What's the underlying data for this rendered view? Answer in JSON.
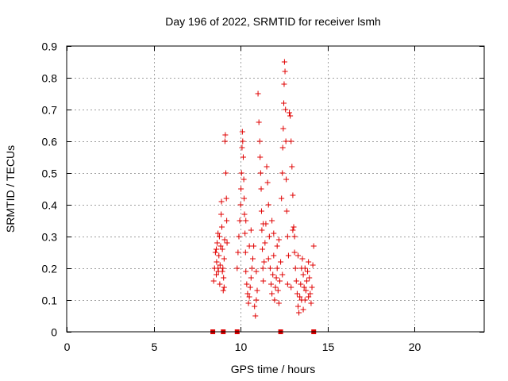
{
  "chart_data": {
    "type": "scatter",
    "title": "Day 196 of 2022, SRMTID for receiver lsmh",
    "xlabel": "GPS time / hours",
    "ylabel": "SRMTID / TECUs",
    "xlim": [
      0,
      24
    ],
    "ylim": [
      0,
      0.9
    ],
    "grid": true,
    "x_ticks": [
      0,
      5,
      10,
      15,
      20
    ],
    "x_tick_labels": [
      "0",
      "5",
      "10",
      "15",
      "20"
    ],
    "y_ticks": [
      0,
      0.1,
      0.2,
      0.3,
      0.4,
      0.5,
      0.6,
      0.7,
      0.8,
      0.9
    ],
    "y_tick_labels": [
      "0",
      "0.1",
      "0.2",
      "0.3",
      "0.4",
      "0.5",
      "0.6",
      "0.7",
      "0.8",
      "0.9"
    ],
    "marker": "+",
    "color": "#e00000",
    "zero_markers_x": [
      8.4,
      9.0,
      9.8,
      12.3,
      14.2
    ],
    "series": [
      {
        "name": "SRMTID",
        "points": [
          [
            8.45,
            0.16
          ],
          [
            8.5,
            0.2
          ],
          [
            8.55,
            0.25
          ],
          [
            8.6,
            0.18
          ],
          [
            8.62,
            0.22
          ],
          [
            8.65,
            0.28
          ],
          [
            8.7,
            0.31
          ],
          [
            8.72,
            0.19
          ],
          [
            8.75,
            0.24
          ],
          [
            8.8,
            0.15
          ],
          [
            8.82,
            0.21
          ],
          [
            8.85,
            0.27
          ],
          [
            8.88,
            0.37
          ],
          [
            8.9,
            0.41
          ],
          [
            8.92,
            0.33
          ],
          [
            8.95,
            0.26
          ],
          [
            8.98,
            0.2
          ],
          [
            9.0,
            0.13
          ],
          [
            9.02,
            0.17
          ],
          [
            9.05,
            0.23
          ],
          [
            9.08,
            0.29
          ],
          [
            9.1,
            0.6
          ],
          [
            9.12,
            0.62
          ],
          [
            9.15,
            0.5
          ],
          [
            9.18,
            0.42
          ],
          [
            9.2,
            0.35
          ],
          [
            9.22,
            0.28
          ],
          [
            8.6,
            0.26
          ],
          [
            8.7,
            0.2
          ],
          [
            8.78,
            0.3
          ],
          [
            9.05,
            0.14
          ],
          [
            8.95,
            0.19
          ],
          [
            9.8,
            0.2
          ],
          [
            9.85,
            0.25
          ],
          [
            9.9,
            0.3
          ],
          [
            9.95,
            0.35
          ],
          [
            10.0,
            0.4
          ],
          [
            10.02,
            0.45
          ],
          [
            10.05,
            0.5
          ],
          [
            10.08,
            0.58
          ],
          [
            10.1,
            0.63
          ],
          [
            10.12,
            0.6
          ],
          [
            10.15,
            0.55
          ],
          [
            10.18,
            0.48
          ],
          [
            10.2,
            0.42
          ],
          [
            10.22,
            0.37
          ],
          [
            10.25,
            0.31
          ],
          [
            10.28,
            0.25
          ],
          [
            10.3,
            0.19
          ],
          [
            10.35,
            0.15
          ],
          [
            10.4,
            0.12
          ],
          [
            10.45,
            0.09
          ],
          [
            10.5,
            0.11
          ],
          [
            10.55,
            0.14
          ],
          [
            10.6,
            0.17
          ],
          [
            10.65,
            0.2
          ],
          [
            10.7,
            0.23
          ],
          [
            10.75,
            0.27
          ],
          [
            10.8,
            0.08
          ],
          [
            10.85,
            0.05
          ],
          [
            10.9,
            0.1
          ],
          [
            10.95,
            0.13
          ],
          [
            11.0,
            0.75
          ],
          [
            11.05,
            0.66
          ],
          [
            11.1,
            0.6
          ],
          [
            11.12,
            0.55
          ],
          [
            11.15,
            0.5
          ],
          [
            11.18,
            0.45
          ],
          [
            11.2,
            0.38
          ],
          [
            11.22,
            0.32
          ],
          [
            11.25,
            0.26
          ],
          [
            11.28,
            0.2
          ],
          [
            11.3,
            0.16
          ],
          [
            11.35,
            0.22
          ],
          [
            11.4,
            0.28
          ],
          [
            11.45,
            0.34
          ],
          [
            11.5,
            0.52
          ],
          [
            11.55,
            0.47
          ],
          [
            11.6,
            0.4
          ],
          [
            11.65,
            0.3
          ],
          [
            11.7,
            0.2
          ],
          [
            11.75,
            0.15
          ],
          [
            11.8,
            0.12
          ],
          [
            11.85,
            0.18
          ],
          [
            11.9,
            0.24
          ],
          [
            11.95,
            0.1
          ],
          [
            12.0,
            0.14
          ],
          [
            12.05,
            0.17
          ],
          [
            12.1,
            0.2
          ],
          [
            12.15,
            0.13
          ],
          [
            12.2,
            0.09
          ],
          [
            12.25,
            0.16
          ],
          [
            12.3,
            0.22
          ],
          [
            12.35,
            0.42
          ],
          [
            12.4,
            0.5
          ],
          [
            12.42,
            0.58
          ],
          [
            12.45,
            0.64
          ],
          [
            12.48,
            0.72
          ],
          [
            12.5,
            0.78
          ],
          [
            12.52,
            0.85
          ],
          [
            12.55,
            0.82
          ],
          [
            12.58,
            0.7
          ],
          [
            12.6,
            0.6
          ],
          [
            12.62,
            0.48
          ],
          [
            12.65,
            0.38
          ],
          [
            12.7,
            0.3
          ],
          [
            12.75,
            0.24
          ],
          [
            12.8,
            0.69
          ],
          [
            12.85,
            0.68
          ],
          [
            12.9,
            0.6
          ],
          [
            12.95,
            0.52
          ],
          [
            13.0,
            0.43
          ],
          [
            13.05,
            0.33
          ],
          [
            13.1,
            0.25
          ],
          [
            13.15,
            0.2
          ],
          [
            13.2,
            0.16
          ],
          [
            13.25,
            0.12
          ],
          [
            13.3,
            0.08
          ],
          [
            13.35,
            0.06
          ],
          [
            13.4,
            0.11
          ],
          [
            13.45,
            0.15
          ],
          [
            13.5,
            0.2
          ],
          [
            13.55,
            0.23
          ],
          [
            13.6,
            0.18
          ],
          [
            13.65,
            0.14
          ],
          [
            13.7,
            0.1
          ],
          [
            13.75,
            0.13
          ],
          [
            13.8,
            0.16
          ],
          [
            13.85,
            0.19
          ],
          [
            13.9,
            0.22
          ],
          [
            13.95,
            0.17
          ],
          [
            14.0,
            0.12
          ],
          [
            14.05,
            0.09
          ],
          [
            14.1,
            0.14
          ],
          [
            14.15,
            0.21
          ],
          [
            14.2,
            0.27
          ],
          [
            10.6,
            0.32
          ],
          [
            10.9,
            0.19
          ],
          [
            11.3,
            0.34
          ],
          [
            11.6,
            0.23
          ],
          [
            11.9,
            0.31
          ],
          [
            12.1,
            0.27
          ],
          [
            12.4,
            0.18
          ],
          [
            12.7,
            0.15
          ],
          [
            13.0,
            0.32
          ],
          [
            13.1,
            0.3
          ],
          [
            13.3,
            0.24
          ],
          [
            13.5,
            0.1
          ],
          [
            13.7,
            0.2
          ],
          [
            13.9,
            0.11
          ],
          [
            10.3,
            0.35
          ],
          [
            10.5,
            0.27
          ],
          [
            11.8,
            0.35
          ],
          [
            12.2,
            0.29
          ],
          [
            12.9,
            0.14
          ],
          [
            13.6,
            0.07
          ]
        ]
      }
    ]
  }
}
